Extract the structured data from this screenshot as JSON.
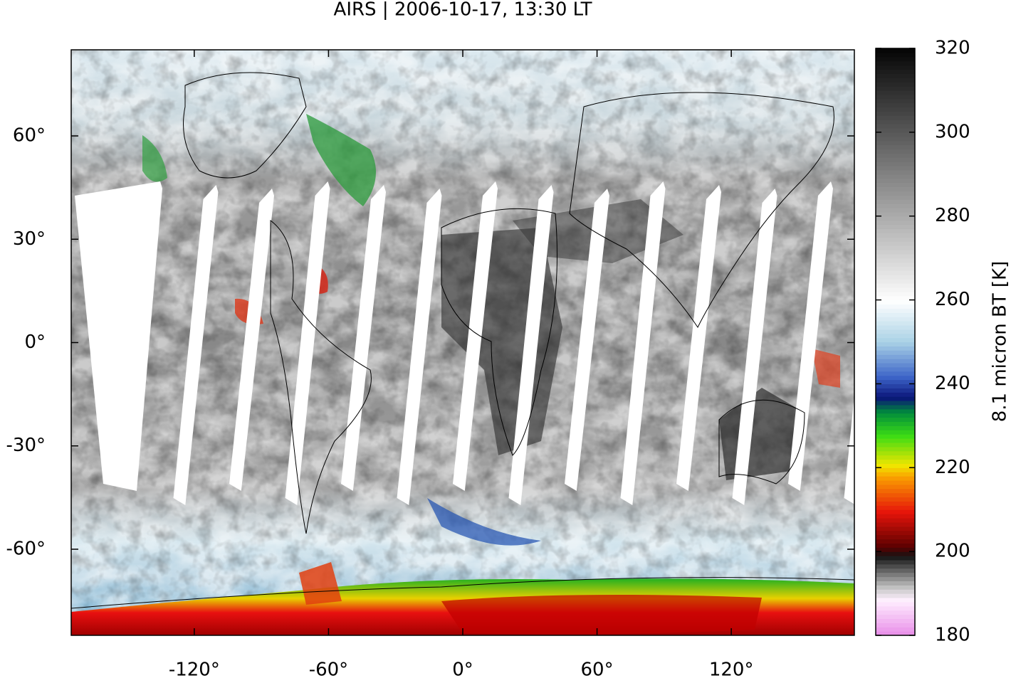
{
  "chart_data": {
    "type": "map",
    "title": "AIRS | 2006-10-17, 13:30 LT",
    "xlim": [
      -175,
      175
    ],
    "xticks": [
      {
        "value": -120,
        "label": "-120°"
      },
      {
        "value": -60,
        "label": "-60°"
      },
      {
        "value": 0,
        "label": "0°"
      },
      {
        "value": 60,
        "label": "60°"
      },
      {
        "value": 120,
        "label": "120°"
      }
    ],
    "ylim": [
      -85,
      85
    ],
    "yticks": [
      {
        "value": 60,
        "label": "60°"
      },
      {
        "value": 30,
        "label": "30°"
      },
      {
        "value": 0,
        "label": "0°"
      },
      {
        "value": -30,
        "label": "-30°"
      },
      {
        "value": -60,
        "label": "-60°"
      }
    ],
    "zlabel": "8.1 micron BT [K]",
    "zlim": [
      180,
      320
    ],
    "zticks": [
      180,
      200,
      220,
      240,
      260,
      280,
      300,
      320
    ]
  }
}
